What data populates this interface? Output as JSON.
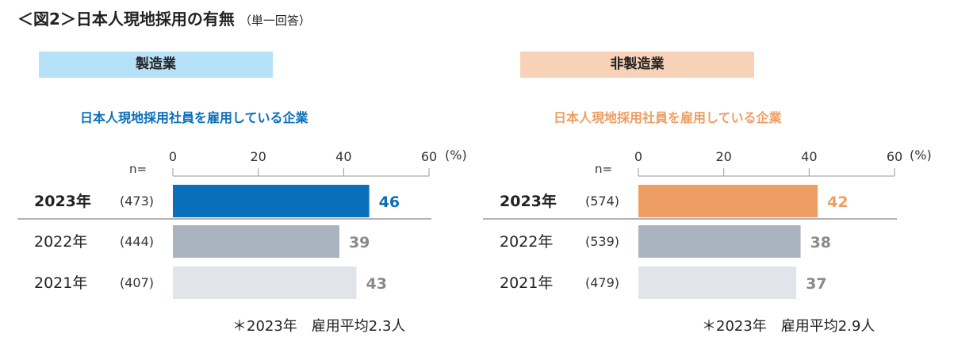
{
  "title": "＜図2＞日本人現地採用の有無",
  "title_note": "（単一回答）",
  "chart_data": [
    {
      "type": "bar",
      "category": "製造業",
      "title": "日本人現地採用社員を雇用している企業",
      "unit": "(%)",
      "n_label": "n=",
      "xlim": [
        0,
        60
      ],
      "ticks": [
        0,
        20,
        40,
        60
      ],
      "rows": [
        {
          "year": "2023年",
          "n": "(473)",
          "value": 46,
          "bold": true
        },
        {
          "year": "2022年",
          "n": "(444)",
          "value": 39,
          "bold": false
        },
        {
          "year": "2021年",
          "n": "(407)",
          "value": 43,
          "bold": false
        }
      ],
      "note": "＊2023年　雇用平均2.3人",
      "colors": {
        "badge": "#b7e1f7",
        "accent": "#0a6fba",
        "bar2022": "#aab4c0",
        "bar2021": "#e1e5ea",
        "label_gray": "#8a8a8a"
      }
    },
    {
      "type": "bar",
      "category": "非製造業",
      "title": "日本人現地採用社員を雇用している企業",
      "unit": "(%)",
      "n_label": "n=",
      "xlim": [
        0,
        60
      ],
      "ticks": [
        0,
        20,
        40,
        60
      ],
      "rows": [
        {
          "year": "2023年",
          "n": "(574)",
          "value": 42,
          "bold": true
        },
        {
          "year": "2022年",
          "n": "(539)",
          "value": 38,
          "bold": false
        },
        {
          "year": "2021年",
          "n": "(479)",
          "value": 37,
          "bold": false
        }
      ],
      "note": "＊2023年　雇用平均2.9人",
      "colors": {
        "badge": "#f7d2b8",
        "accent": "#ee9e63",
        "bar2022": "#aab4c0",
        "bar2021": "#e1e5ea",
        "label_gray": "#8a8a8a"
      }
    }
  ]
}
